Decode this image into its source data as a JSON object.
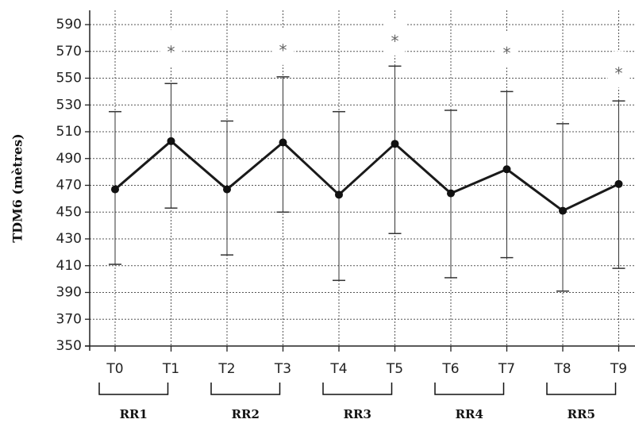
{
  "chart_data": {
    "type": "line",
    "ylabel": "TDM6 (mètres)",
    "xlabel": "",
    "ylim": [
      350,
      600
    ],
    "yticks": [
      350,
      370,
      390,
      410,
      430,
      450,
      470,
      490,
      510,
      530,
      550,
      570,
      590
    ],
    "grid": true,
    "categories": [
      "T0",
      "T1",
      "T2",
      "T3",
      "T4",
      "T5",
      "T6",
      "T7",
      "T8",
      "T9"
    ],
    "series": [
      {
        "values": [
          467,
          503,
          467,
          502,
          463,
          501,
          464,
          482,
          451,
          471
        ],
        "error_low": [
          411,
          453,
          418,
          450,
          399,
          434,
          401,
          416,
          391,
          408
        ],
        "error_high": [
          525,
          546,
          518,
          551,
          525,
          559,
          526,
          540,
          516,
          533
        ]
      }
    ],
    "significance_marker": "*",
    "significant_points": [
      "T1",
      "T3",
      "T5",
      "T7",
      "T9"
    ],
    "groups": [
      {
        "label": "RR1",
        "from": "T0",
        "to": "T1"
      },
      {
        "label": "RR2",
        "from": "T2",
        "to": "T3"
      },
      {
        "label": "RR3",
        "from": "T4",
        "to": "T5"
      },
      {
        "label": "RR4",
        "from": "T6",
        "to": "T7"
      },
      {
        "label": "RR5",
        "from": "T8",
        "to": "T9"
      }
    ]
  }
}
